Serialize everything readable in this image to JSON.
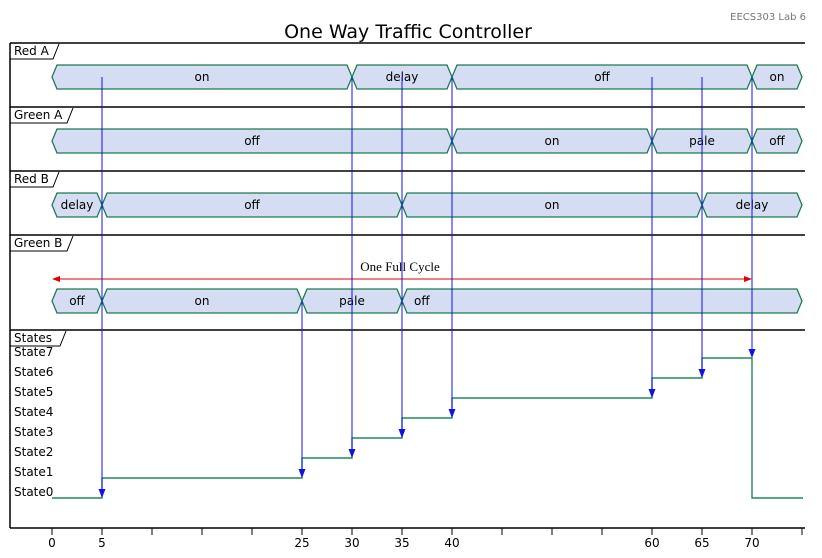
{
  "title": "One Way Traffic Controller",
  "corner_note": "EECS303 Lab 6",
  "colors": {
    "segment_fill": "#d4ddf1",
    "segment_stroke": "#1f7a55",
    "arrow": "#1010ee",
    "cycle_arrow": "#e00000",
    "state_line": "#1f8a5a"
  },
  "signals": [
    {
      "label": "Red A",
      "segments": [
        {
          "from": 0,
          "to": 30,
          "label": "on"
        },
        {
          "from": 30,
          "to": 40,
          "label": "delay"
        },
        {
          "from": 40,
          "to": 70,
          "label": "off"
        },
        {
          "from": 70,
          "to": 75,
          "label": "on"
        }
      ]
    },
    {
      "label": "Green A",
      "segments": [
        {
          "from": 0,
          "to": 40,
          "label": "off"
        },
        {
          "from": 40,
          "to": 60,
          "label": "on"
        },
        {
          "from": 60,
          "to": 70,
          "label": "pale"
        },
        {
          "from": 70,
          "to": 75,
          "label": "off"
        }
      ]
    },
    {
      "label": "Red B",
      "segments": [
        {
          "from": 0,
          "to": 5,
          "label": "delay"
        },
        {
          "from": 5,
          "to": 35,
          "label": "off"
        },
        {
          "from": 35,
          "to": 65,
          "label": "on"
        },
        {
          "from": 65,
          "to": 75,
          "label": "delay"
        }
      ]
    },
    {
      "label": "Green B",
      "segments": [
        {
          "from": 0,
          "to": 5,
          "label": "off"
        },
        {
          "from": 5,
          "to": 25,
          "label": "on"
        },
        {
          "from": 25,
          "to": 35,
          "label": "pale"
        },
        {
          "from": 35,
          "to": 75,
          "label": "off"
        }
      ]
    }
  ],
  "cycle": {
    "label": "One Full Cycle",
    "from": 0,
    "to": 70
  },
  "states_header": "States",
  "state_names": [
    "State0",
    "State1",
    "State2",
    "State3",
    "State4",
    "State5",
    "State6",
    "State7"
  ],
  "state_sequence": [
    {
      "t": 0,
      "state": 0
    },
    {
      "t": 5,
      "state": 1
    },
    {
      "t": 25,
      "state": 2
    },
    {
      "t": 30,
      "state": 3
    },
    {
      "t": 35,
      "state": 4
    },
    {
      "t": 40,
      "state": 5
    },
    {
      "t": 60,
      "state": 6
    },
    {
      "t": 65,
      "state": 7
    },
    {
      "t": 70,
      "state": 0
    }
  ],
  "transition_arrows": [
    {
      "t": 5,
      "source_signal": 0
    },
    {
      "t": 25,
      "source_signal": 3
    },
    {
      "t": 30,
      "source_signal": 0
    },
    {
      "t": 35,
      "source_signal": 0
    },
    {
      "t": 40,
      "source_signal": 0
    },
    {
      "t": 60,
      "source_signal": 0
    },
    {
      "t": 65,
      "source_signal": 0
    },
    {
      "t": 70,
      "source_signal": 0
    }
  ],
  "time_axis": {
    "min": 0,
    "max": 75,
    "minor_step": 5,
    "labeled_ticks": [
      "0",
      "5",
      "25",
      "30",
      "35",
      "40",
      "60",
      "65",
      "70"
    ]
  }
}
